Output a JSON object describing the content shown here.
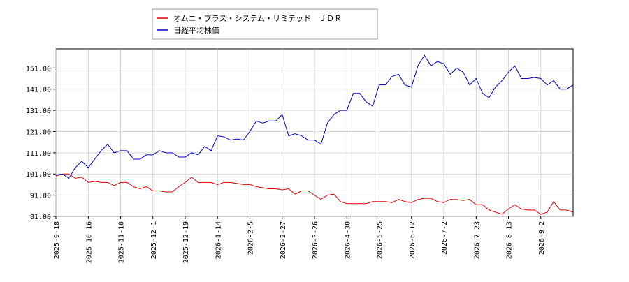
{
  "chart_data": {
    "type": "line",
    "categories": [
      "2025-9-18",
      null,
      null,
      null,
      null,
      "2025-10-16",
      null,
      null,
      null,
      null,
      "2025-11-10",
      null,
      null,
      null,
      null,
      "2025-12-1",
      null,
      null,
      null,
      null,
      "2025-12-19",
      null,
      null,
      null,
      null,
      "2026-1-14",
      null,
      null,
      null,
      null,
      "2026-2-5",
      null,
      null,
      null,
      null,
      "2026-2-27",
      null,
      null,
      null,
      null,
      "2026-3-26",
      null,
      null,
      null,
      null,
      "2026-4-30",
      null,
      null,
      null,
      null,
      "2026-5-25",
      null,
      null,
      null,
      null,
      "2026-6-12",
      null,
      null,
      null,
      null,
      "2026-7-2",
      null,
      null,
      null,
      null,
      "2026-7-23",
      null,
      null,
      null,
      null,
      "2026-8-13",
      null,
      null,
      null,
      null,
      "2026-9-2",
      null,
      null,
      null,
      null,
      null
    ],
    "series": [
      {
        "name": "オムニ・プラス・システム・リミテッド　ＪＤＲ",
        "color": "#e00000",
        "values": [
          100,
          101,
          101,
          99,
          99.5,
          97,
          97.5,
          97,
          97,
          95.5,
          97,
          97,
          95,
          94,
          95,
          93,
          93,
          92.5,
          92.5,
          95,
          97,
          99.5,
          97,
          97,
          97,
          96,
          97,
          97,
          96.5,
          96,
          96,
          95,
          94.5,
          94,
          94,
          93.5,
          94,
          91.5,
          93,
          93,
          91,
          89,
          91,
          91.5,
          88,
          87,
          87,
          87,
          87,
          88,
          88,
          88,
          87.5,
          89,
          88,
          87.5,
          89,
          89.5,
          89.5,
          88,
          87.5,
          89,
          89,
          88.5,
          89,
          86.5,
          86.5,
          84,
          83,
          82,
          84.5,
          86.5,
          84.5,
          84,
          84,
          82,
          83,
          88,
          84,
          84,
          83
        ]
      },
      {
        "name": "日経平均株価",
        "color": "#0000d0",
        "values": [
          100.5,
          101,
          99,
          104,
          107,
          104,
          108,
          112,
          115,
          111,
          112,
          112,
          108,
          108,
          110,
          110,
          112,
          111,
          111,
          109,
          109,
          111,
          110,
          114,
          112,
          119,
          118.5,
          117,
          117.5,
          117,
          121,
          126,
          125,
          126,
          126,
          129,
          119,
          120,
          119,
          117,
          117,
          115,
          125,
          129,
          131,
          131,
          139,
          139,
          135,
          133,
          143,
          143,
          147,
          148,
          143,
          142,
          152,
          157,
          152,
          154,
          153,
          148,
          151,
          149,
          143,
          146,
          139,
          137,
          142,
          145,
          149,
          152,
          146,
          146,
          146.5,
          146,
          143,
          145,
          141,
          141,
          143
        ]
      }
    ],
    "ylim": [
      81,
      160
    ],
    "yticks": [
      {
        "value": 81,
        "label": "81.00"
      },
      {
        "value": 91,
        "label": "91.00"
      },
      {
        "value": 101,
        "label": "101.00"
      },
      {
        "value": 111,
        "label": "111.00"
      },
      {
        "value": 121,
        "label": "121.00"
      },
      {
        "value": 131,
        "label": "131.00"
      },
      {
        "value": 141,
        "label": "141.00"
      },
      {
        "value": 151,
        "label": "151.00"
      }
    ],
    "grid": true
  }
}
